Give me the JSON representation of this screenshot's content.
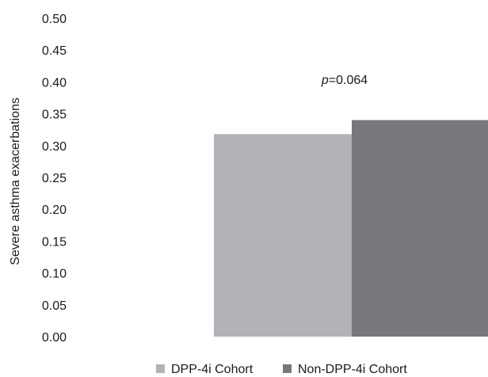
{
  "chart_data": {
    "type": "bar",
    "title": "",
    "xlabel": "",
    "ylabel": "Severe asthma exacerbations",
    "ylim": [
      0,
      0.5
    ],
    "yticks": [
      "0.00",
      "0.05",
      "0.10",
      "0.15",
      "0.20",
      "0.25",
      "0.30",
      "0.35",
      "0.40",
      "0.45",
      "0.50"
    ],
    "grid": false,
    "legend_position": "bottom",
    "annotation": {
      "prefix": "p",
      "text": "=0.064"
    },
    "series": [
      {
        "name": "DPP-4i Cohort",
        "value": 0.318,
        "color": "#b1b3b6"
      },
      {
        "name": "Non-DPP-4i Cohort",
        "value": 0.34,
        "color": "#77787b"
      }
    ]
  }
}
